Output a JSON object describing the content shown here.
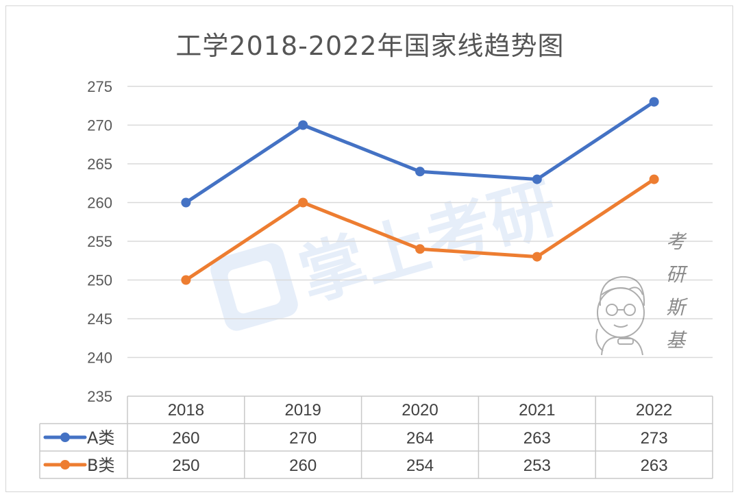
{
  "chart_data": {
    "type": "line",
    "title": "工学2018-2022年国家线趋势图",
    "categories": [
      "2018",
      "2019",
      "2020",
      "2021",
      "2022"
    ],
    "series": [
      {
        "name": "A类",
        "values": [
          260,
          270,
          264,
          263,
          273
        ],
        "color": "#4472C4"
      },
      {
        "name": "B类",
        "values": [
          250,
          260,
          254,
          253,
          263
        ],
        "color": "#ED7D31"
      }
    ],
    "ylim": [
      235,
      275
    ],
    "ytick_step": 5,
    "grid": true,
    "legend": "data-table"
  },
  "watermark": {
    "logo_text": "掌上考研",
    "side_chars": [
      "考",
      "研",
      "斯",
      "基"
    ]
  }
}
